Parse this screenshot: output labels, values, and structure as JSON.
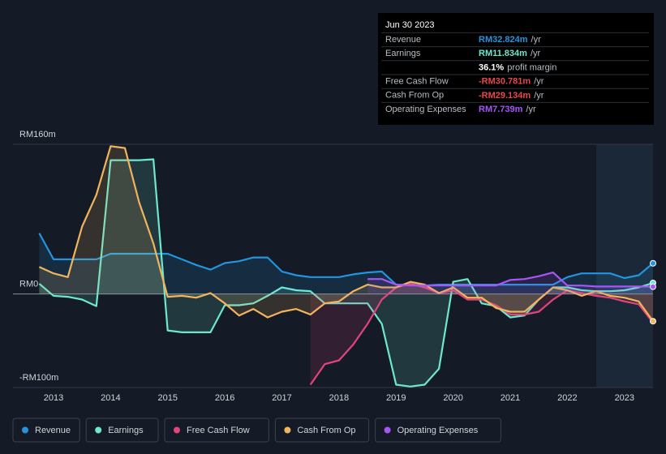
{
  "chart_data": {
    "type": "line",
    "x": [
      2012.75,
      2013,
      2013.25,
      2013.5,
      2013.75,
      2014,
      2014.25,
      2014.5,
      2014.75,
      2015,
      2015.25,
      2015.5,
      2015.75,
      2016,
      2016.25,
      2016.5,
      2016.75,
      2017,
      2017.25,
      2017.5,
      2017.75,
      2018,
      2018.25,
      2018.5,
      2018.75,
      2019,
      2019.25,
      2019.5,
      2019.75,
      2020,
      2020.25,
      2020.5,
      2020.75,
      2021,
      2021.25,
      2021.5,
      2021.75,
      2022,
      2022.25,
      2022.5,
      2022.75,
      2023,
      2023.25,
      2023.5
    ],
    "xlim": [
      2012.29,
      2023.5
    ],
    "xticks": [
      2013,
      2014,
      2015,
      2016,
      2017,
      2018,
      2019,
      2020,
      2021,
      2022,
      2023
    ],
    "ylim": [
      -100,
      160
    ],
    "yticks": [
      {
        "value": 160,
        "label": "RM160m"
      },
      {
        "value": 0,
        "label": "RM0"
      },
      {
        "value": -100,
        "label": "-RM100m"
      }
    ],
    "grid": true,
    "series": [
      {
        "name": "Revenue",
        "color": "#2394df",
        "values": [
          65,
          37,
          37,
          37,
          37,
          43,
          43,
          43,
          43,
          43,
          37,
          31,
          26,
          33,
          35,
          39,
          39,
          24,
          20,
          18,
          18,
          18,
          21,
          23,
          24,
          10,
          10,
          9,
          10,
          10,
          10,
          10,
          10,
          10,
          10,
          10,
          10,
          18,
          22,
          22,
          22,
          17,
          20,
          32.824
        ]
      },
      {
        "name": "Earnings",
        "color": "#6ee7cf",
        "values": [
          11,
          -2,
          -3,
          -6,
          -13,
          143,
          143,
          143,
          144,
          -39,
          -41,
          -41,
          -41,
          -12,
          -12,
          -10,
          -2,
          7,
          4,
          3,
          -10,
          -10,
          -10,
          -10,
          -32,
          -97,
          -99,
          -97,
          -80,
          13,
          16,
          -10,
          -13,
          -25,
          -23,
          -6,
          7,
          7,
          4,
          3,
          3,
          4,
          7,
          11.834
        ]
      },
      {
        "name": "Free Cash Flow",
        "color": "#e0457b",
        "values": [
          null,
          null,
          null,
          null,
          null,
          null,
          null,
          null,
          null,
          null,
          null,
          null,
          null,
          null,
          null,
          null,
          null,
          null,
          null,
          -97,
          -75,
          -71,
          -54,
          -32,
          -6,
          7,
          11,
          7,
          1,
          4,
          -6,
          -6,
          -12,
          -22,
          -22,
          -19,
          -6,
          4,
          1,
          -2,
          -4,
          -8,
          -11,
          -30.781
        ]
      },
      {
        "name": "Cash From Op",
        "color": "#f2b45c",
        "values": [
          29,
          22,
          18,
          72,
          106,
          158,
          156,
          98,
          54,
          -3,
          -2,
          -4,
          1,
          -10,
          -23,
          -16,
          -25,
          -19,
          -16,
          -22,
          -10,
          -8,
          3,
          10,
          7,
          7,
          13,
          10,
          1,
          7,
          -4,
          -4,
          -15,
          -19,
          -19,
          -6,
          7,
          4,
          -2,
          3,
          -2,
          -4,
          -8,
          -29.134
        ]
      },
      {
        "name": "Operating Expenses",
        "color": "#a855f7",
        "values": [
          null,
          null,
          null,
          null,
          null,
          null,
          null,
          null,
          null,
          null,
          null,
          null,
          null,
          null,
          null,
          null,
          null,
          null,
          null,
          null,
          null,
          null,
          null,
          16,
          16,
          10,
          9,
          9,
          9,
          9,
          9,
          9,
          9,
          15,
          16,
          19,
          23,
          9,
          9,
          8,
          8,
          8,
          8,
          7.739
        ]
      }
    ],
    "tooltip": {
      "title": "Jun 30 2023",
      "rows": [
        {
          "label": "Revenue",
          "value": "RM32.824m",
          "unit": "/yr",
          "color": "#2394df"
        },
        {
          "label": "Earnings",
          "value": "RM11.834m",
          "unit": "/yr",
          "color": "#6ee7cf"
        },
        {
          "value": "36.1%",
          "unit": "profit margin",
          "color": "#ffffff"
        },
        {
          "label": "Free Cash Flow",
          "value": "-RM30.781m",
          "unit": "/yr",
          "color": "#e64848"
        },
        {
          "label": "Cash From Op",
          "value": "-RM29.134m",
          "unit": "/yr",
          "color": "#e64848"
        },
        {
          "label": "Operating Expenses",
          "value": "RM7.739m",
          "unit": "/yr",
          "color": "#a855f7"
        }
      ]
    }
  }
}
